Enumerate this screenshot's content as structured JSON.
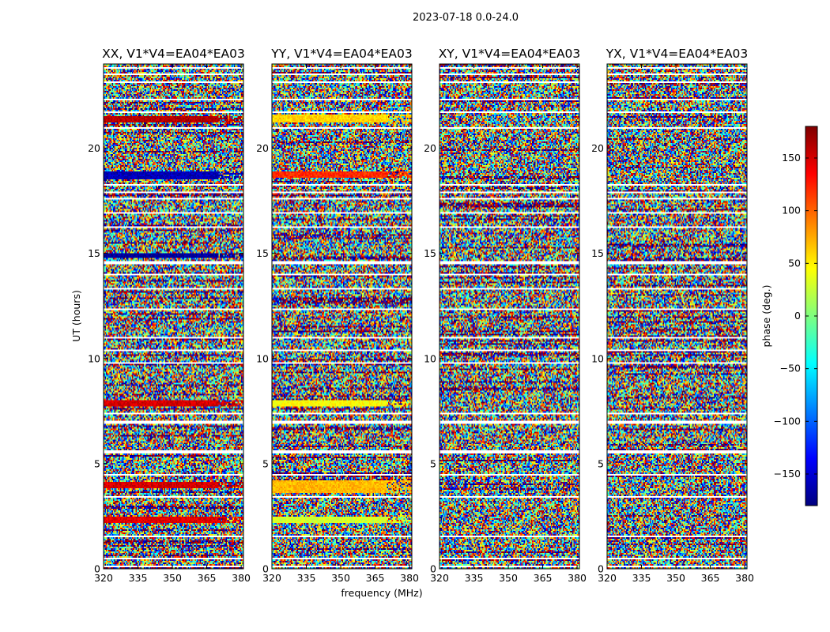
{
  "figure_title": "2023-07-18 0.0-24.0",
  "chart_data": {
    "type": "heatmap",
    "suptitle": "2023-07-18 0.0-24.0",
    "xlabel": "frequency (MHz)",
    "ylabel": "UT (hours)",
    "xlim": [
      320,
      381
    ],
    "ylim": [
      0,
      24
    ],
    "xticks": [
      320,
      335,
      350,
      365,
      380
    ],
    "yticks": [
      0,
      5,
      10,
      15,
      20
    ],
    "colorbar": {
      "label": "phase (deg.)",
      "range": [
        -180,
        180
      ],
      "ticks": [
        150,
        100,
        50,
        0,
        -50,
        -100,
        -150
      ],
      "tick_labels": [
        "150",
        "100",
        "50",
        "0",
        "−50",
        "−100",
        "−150"
      ],
      "colormap": "jet",
      "colors": [
        "#00007f",
        "#0000ff",
        "#007fff",
        "#00ffff",
        "#7fff7f",
        "#ffff00",
        "#ff7f00",
        "#ff0000",
        "#7f0000"
      ]
    },
    "gap_color": "#ffffff",
    "panels": [
      {
        "title": "XX, V1*V4=EA04*EA03",
        "bias": [
          {
            "t0": 21.2,
            "t1": 21.55,
            "phase": 160
          },
          {
            "t0": 18.5,
            "t1": 18.9,
            "phase": -160
          },
          {
            "t0": 14.8,
            "t1": 15.0,
            "phase": -170
          },
          {
            "t0": 7.7,
            "t1": 8.0,
            "phase": 150
          },
          {
            "t0": 3.8,
            "t1": 4.1,
            "phase": 150
          },
          {
            "t0": 2.2,
            "t1": 2.5,
            "phase": 145
          }
        ]
      },
      {
        "title": "YY, V1*V4=EA04*EA03",
        "bias": [
          {
            "t0": 21.2,
            "t1": 21.6,
            "phase": 60
          },
          {
            "t0": 18.6,
            "t1": 18.9,
            "phase": 120
          },
          {
            "t0": 7.7,
            "t1": 8.0,
            "phase": 45
          },
          {
            "t0": 3.6,
            "t1": 4.2,
            "phase": 70
          },
          {
            "t0": 2.2,
            "t1": 2.5,
            "phase": 30
          }
        ]
      },
      {
        "title": "XY, V1*V4=EA04*EA03",
        "bias": []
      },
      {
        "title": "YX, V1*V4=EA04*EA03",
        "bias": []
      }
    ],
    "gaps_ut": [
      [
        0.05,
        0.12
      ],
      [
        0.45,
        0.5
      ],
      [
        0.72,
        0.78
      ],
      [
        1.5,
        1.56
      ],
      [
        2.9,
        2.96
      ],
      [
        3.4,
        3.48
      ],
      [
        4.45,
        4.5
      ],
      [
        5.5,
        5.62
      ],
      [
        6.92,
        7.02
      ],
      [
        7.35,
        7.4
      ],
      [
        7.62,
        7.66
      ],
      [
        8.45,
        8.5
      ],
      [
        9.78,
        9.84
      ],
      [
        10.35,
        10.4
      ],
      [
        10.95,
        11.0
      ],
      [
        11.6,
        11.65
      ],
      [
        12.3,
        12.36
      ],
      [
        13.3,
        13.35
      ],
      [
        13.95,
        14.0
      ],
      [
        14.5,
        14.62
      ],
      [
        15.35,
        15.4
      ],
      [
        16.2,
        16.25
      ],
      [
        16.9,
        16.96
      ],
      [
        17.55,
        17.6
      ],
      [
        17.85,
        17.9
      ],
      [
        18.22,
        18.28
      ],
      [
        19.1,
        19.16
      ],
      [
        20.9,
        20.98
      ],
      [
        21.68,
        21.75
      ],
      [
        22.28,
        22.36
      ],
      [
        23.08,
        23.14
      ],
      [
        23.5,
        23.56
      ],
      [
        23.8,
        23.86
      ]
    ]
  }
}
